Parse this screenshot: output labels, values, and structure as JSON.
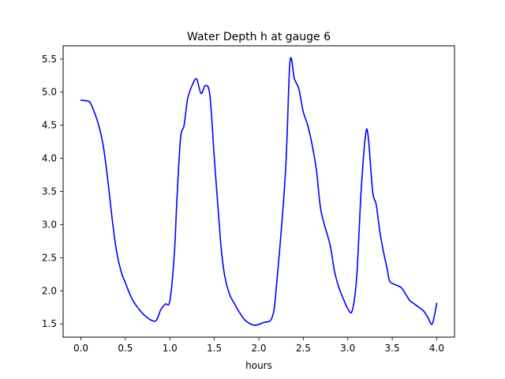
{
  "chart_data": {
    "type": "line",
    "title": "Water Depth h at gauge 6",
    "xlabel": "hours",
    "ylabel": "",
    "xlim": [
      -0.2,
      4.2
    ],
    "ylim": [
      1.3,
      5.7
    ],
    "grid": false,
    "x_ticks": [
      0.0,
      0.5,
      1.0,
      1.5,
      2.0,
      2.5,
      3.0,
      3.5,
      4.0
    ],
    "x_tick_labels": [
      "0.0",
      "0.5",
      "1.0",
      "1.5",
      "2.0",
      "2.5",
      "3.0",
      "3.5",
      "4.0"
    ],
    "y_ticks": [
      1.5,
      2.0,
      2.5,
      3.0,
      3.5,
      4.0,
      4.5,
      5.0,
      5.5
    ],
    "y_tick_labels": [
      "1.5",
      "2.0",
      "2.5",
      "3.0",
      "3.5",
      "4.0",
      "4.5",
      "5.0",
      "5.5"
    ],
    "series": [
      {
        "color": "#0000ff",
        "x": [
          0.0,
          0.05,
          0.1,
          0.15,
          0.2,
          0.25,
          0.3,
          0.35,
          0.4,
          0.45,
          0.5,
          0.55,
          0.6,
          0.7,
          0.8,
          0.85,
          0.9,
          0.95,
          1.0,
          1.05,
          1.08,
          1.12,
          1.16,
          1.2,
          1.25,
          1.3,
          1.35,
          1.4,
          1.45,
          1.5,
          1.55,
          1.58,
          1.62,
          1.67,
          1.72,
          1.78,
          1.85,
          1.95,
          2.05,
          2.15,
          2.2,
          2.3,
          2.35,
          2.4,
          2.45,
          2.5,
          2.55,
          2.6,
          2.65,
          2.7,
          2.8,
          2.85,
          2.9,
          2.95,
          3.0,
          3.05,
          3.1,
          3.15,
          3.2,
          3.23,
          3.28,
          3.32,
          3.36,
          3.4,
          3.44,
          3.47,
          3.52,
          3.6,
          3.65,
          3.7,
          3.75,
          3.8,
          3.85,
          3.9,
          3.95,
          4.0
        ],
        "y": [
          4.88,
          4.87,
          4.85,
          4.7,
          4.5,
          4.2,
          3.7,
          3.1,
          2.6,
          2.3,
          2.12,
          1.95,
          1.82,
          1.65,
          1.55,
          1.56,
          1.72,
          1.8,
          1.85,
          2.55,
          3.4,
          4.3,
          4.5,
          4.9,
          5.1,
          5.2,
          4.98,
          5.1,
          4.95,
          4.0,
          3.1,
          2.6,
          2.2,
          1.95,
          1.82,
          1.68,
          1.55,
          1.48,
          1.52,
          1.6,
          2.1,
          3.8,
          5.45,
          5.2,
          5.05,
          4.7,
          4.5,
          4.2,
          3.8,
          3.2,
          2.7,
          2.3,
          2.05,
          1.88,
          1.73,
          1.7,
          2.2,
          3.5,
          4.35,
          4.33,
          3.5,
          3.3,
          2.9,
          2.6,
          2.35,
          2.15,
          2.1,
          2.05,
          1.95,
          1.85,
          1.8,
          1.75,
          1.7,
          1.6,
          1.5,
          1.81
        ]
      }
    ]
  }
}
